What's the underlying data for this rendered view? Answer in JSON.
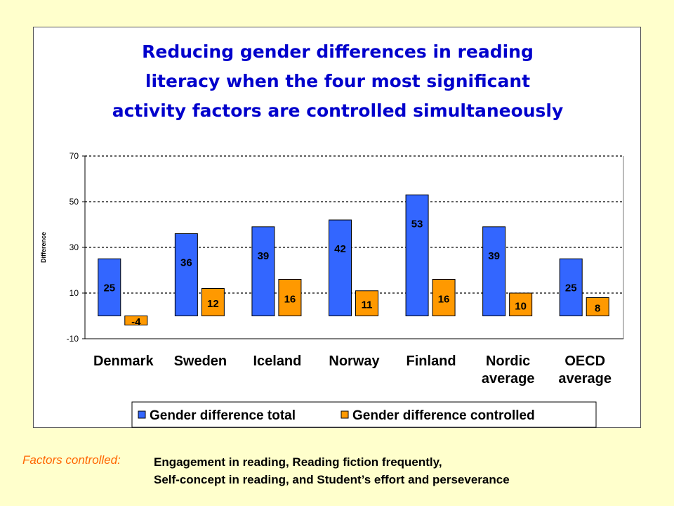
{
  "title": {
    "lines": [
      "Reducing gender differences in reading",
      "literacy when the four most significant",
      "activity factors are controlled simultaneously"
    ]
  },
  "chart_data": {
    "type": "bar",
    "title": "Reducing gender differences in reading literacy when the four most significant activity factors are controlled simultaneously",
    "ylabel": "Difference",
    "xlabel": "",
    "ylim": [
      -10,
      70
    ],
    "yticks": [
      "70",
      "50",
      "30",
      "10",
      "-10"
    ],
    "ytick_values": [
      70,
      50,
      30,
      10,
      -10
    ],
    "grid": "dotted horizontal",
    "legend": "bottom",
    "categories": [
      [
        "Denmark"
      ],
      [
        "Sweden"
      ],
      [
        "Iceland"
      ],
      [
        "Norway"
      ],
      [
        "Finland"
      ],
      [
        "Nordic",
        "average"
      ],
      [
        "OECD",
        "average"
      ]
    ],
    "series": [
      {
        "name": "Gender difference total",
        "color": "#3366FF",
        "values": [
          25,
          36,
          39,
          42,
          53,
          39,
          25
        ],
        "labels": [
          "25",
          "36",
          "39",
          "42",
          "53",
          "39",
          "25"
        ]
      },
      {
        "name": "Gender difference controlled",
        "color": "#FF9900",
        "values": [
          -4,
          12,
          16,
          11,
          16,
          10,
          8
        ],
        "labels": [
          "-4",
          "12",
          "16",
          "11",
          "16",
          "10",
          "8"
        ]
      }
    ]
  },
  "footer": {
    "label": "Factors controlled:",
    "lines": [
      "Engagement in reading, Reading fiction frequently,",
      "Self-concept in reading, and Student’s effort and perseverance"
    ]
  }
}
